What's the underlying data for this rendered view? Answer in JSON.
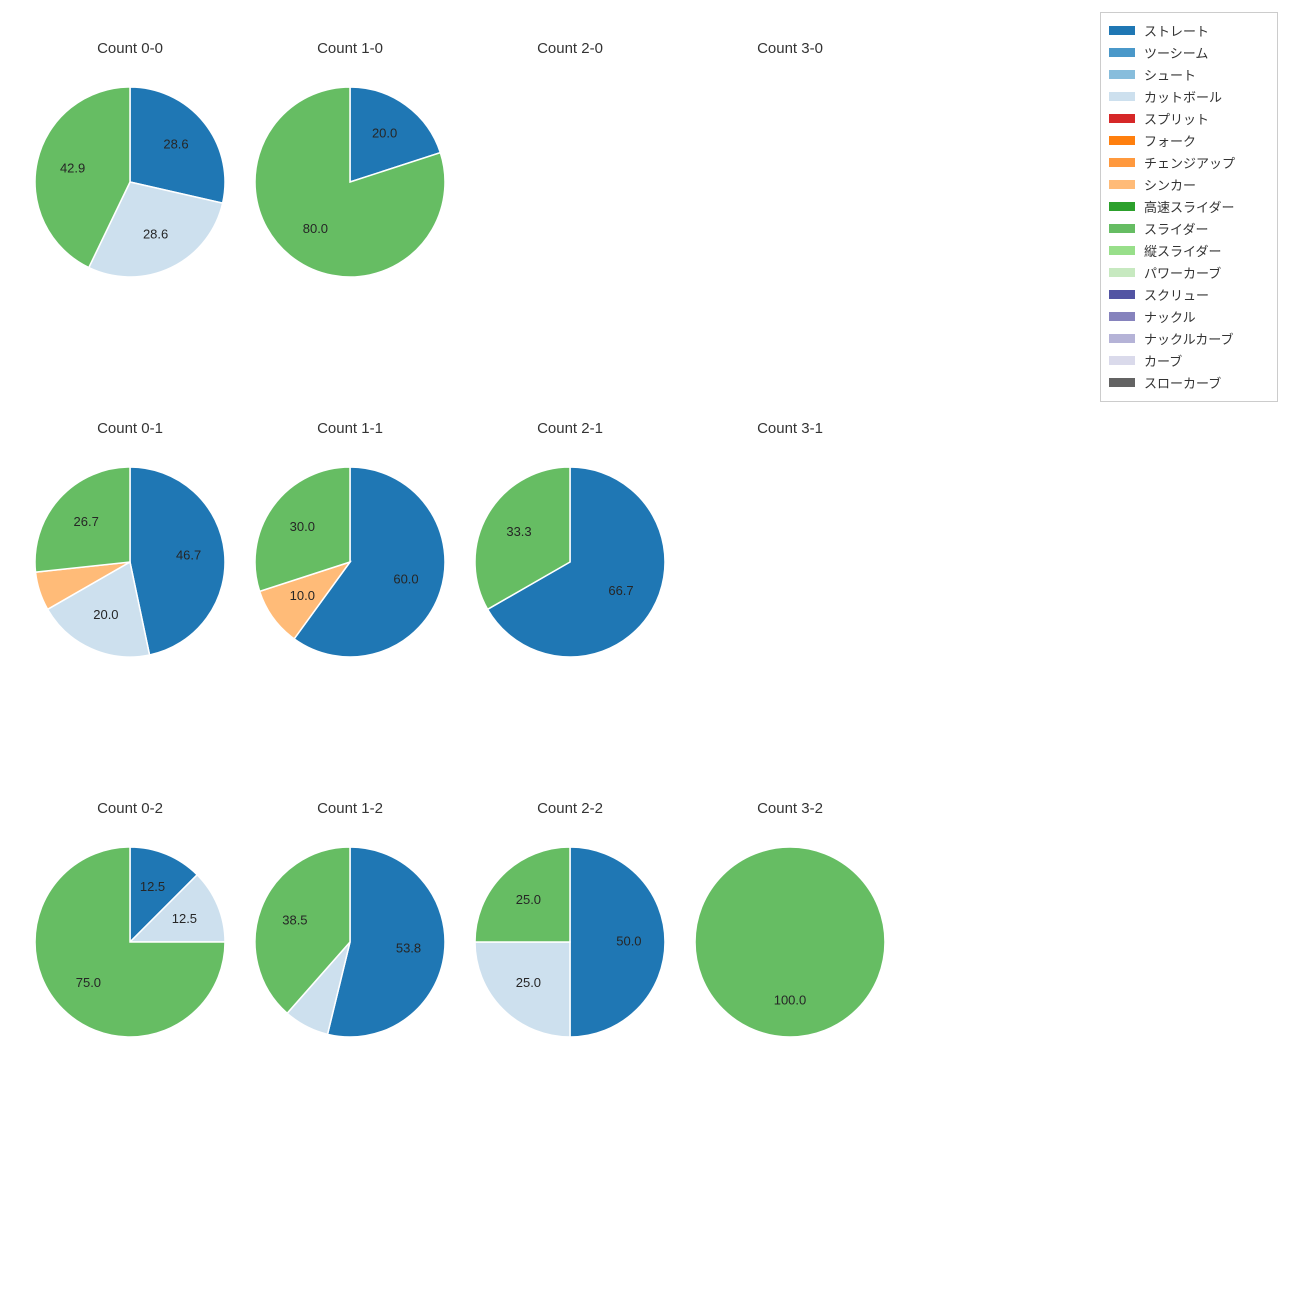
{
  "background_color": "#ffffff",
  "text_color": "#333333",
  "title_fontsize": 15,
  "label_fontsize": 13,
  "pie_start_angle_deg": 90,
  "pie_direction": "clockwise",
  "slice_edge_color": "#ffffff",
  "slice_edge_width": 1.5,
  "legend": {
    "border_color": "#cccccc",
    "items": [
      {
        "label": "ストレート",
        "color": "#1f77b4"
      },
      {
        "label": "ツーシーム",
        "color": "#4a98c9"
      },
      {
        "label": "シュート",
        "color": "#87bddc"
      },
      {
        "label": "カットボール",
        "color": "#cde0ee"
      },
      {
        "label": "スプリット",
        "color": "#d62728"
      },
      {
        "label": "フォーク",
        "color": "#ff7f0e"
      },
      {
        "label": "チェンジアップ",
        "color": "#ff993e"
      },
      {
        "label": "シンカー",
        "color": "#ffbb78"
      },
      {
        "label": "高速スライダー",
        "color": "#2ca02c"
      },
      {
        "label": "スライダー",
        "color": "#66bd63"
      },
      {
        "label": "縦スライダー",
        "color": "#98df8a"
      },
      {
        "label": "パワーカーブ",
        "color": "#c7e9c0"
      },
      {
        "label": "スクリュー",
        "color": "#5254a3"
      },
      {
        "label": "ナックル",
        "color": "#8683bd"
      },
      {
        "label": "ナックルカーブ",
        "color": "#b5b3d7"
      },
      {
        "label": "カーブ",
        "color": "#dadaeb"
      },
      {
        "label": "スローカーブ",
        "color": "#636363"
      }
    ]
  },
  "grid": {
    "rows": 3,
    "cols": 4
  },
  "charts": [
    {
      "title": "Count 0-0",
      "slices": [
        {
          "value": 28.6,
          "color": "#1f77b4",
          "label": "28.6"
        },
        {
          "value": 28.6,
          "color": "#cde0ee",
          "label": "28.6"
        },
        {
          "value": 42.9,
          "color": "#66bd63",
          "label": "42.9"
        }
      ]
    },
    {
      "title": "Count 1-0",
      "slices": [
        {
          "value": 20.0,
          "color": "#1f77b4",
          "label": "20.0"
        },
        {
          "value": 80.0,
          "color": "#66bd63",
          "label": "80.0"
        }
      ]
    },
    {
      "title": "Count 2-0",
      "slices": []
    },
    {
      "title": "Count 3-0",
      "slices": []
    },
    {
      "title": "Count 0-1",
      "slices": [
        {
          "value": 46.7,
          "color": "#1f77b4",
          "label": "46.7"
        },
        {
          "value": 20.0,
          "color": "#cde0ee",
          "label": "20.0"
        },
        {
          "value": 6.6,
          "color": "#ffbb78",
          "label": ""
        },
        {
          "value": 26.7,
          "color": "#66bd63",
          "label": "26.7"
        }
      ]
    },
    {
      "title": "Count 1-1",
      "slices": [
        {
          "value": 60.0,
          "color": "#1f77b4",
          "label": "60.0"
        },
        {
          "value": 10.0,
          "color": "#ffbb78",
          "label": "10.0"
        },
        {
          "value": 30.0,
          "color": "#66bd63",
          "label": "30.0"
        }
      ]
    },
    {
      "title": "Count 2-1",
      "slices": [
        {
          "value": 66.7,
          "color": "#1f77b4",
          "label": "66.7"
        },
        {
          "value": 33.3,
          "color": "#66bd63",
          "label": "33.3"
        }
      ]
    },
    {
      "title": "Count 3-1",
      "slices": []
    },
    {
      "title": "Count 0-2",
      "slices": [
        {
          "value": 12.5,
          "color": "#1f77b4",
          "label": "12.5"
        },
        {
          "value": 12.5,
          "color": "#cde0ee",
          "label": "12.5"
        },
        {
          "value": 75.0,
          "color": "#66bd63",
          "label": "75.0"
        }
      ]
    },
    {
      "title": "Count 1-2",
      "slices": [
        {
          "value": 53.8,
          "color": "#1f77b4",
          "label": "53.8"
        },
        {
          "value": 7.7,
          "color": "#cde0ee",
          "label": ""
        },
        {
          "value": 38.5,
          "color": "#66bd63",
          "label": "38.5"
        }
      ]
    },
    {
      "title": "Count 2-2",
      "slices": [
        {
          "value": 50.0,
          "color": "#1f77b4",
          "label": "50.0"
        },
        {
          "value": 25.0,
          "color": "#cde0ee",
          "label": "25.0"
        },
        {
          "value": 25.0,
          "color": "#66bd63",
          "label": "25.0"
        }
      ]
    },
    {
      "title": "Count 3-2",
      "slices": [
        {
          "value": 100.0,
          "color": "#66bd63",
          "label": "100.0"
        }
      ]
    }
  ]
}
